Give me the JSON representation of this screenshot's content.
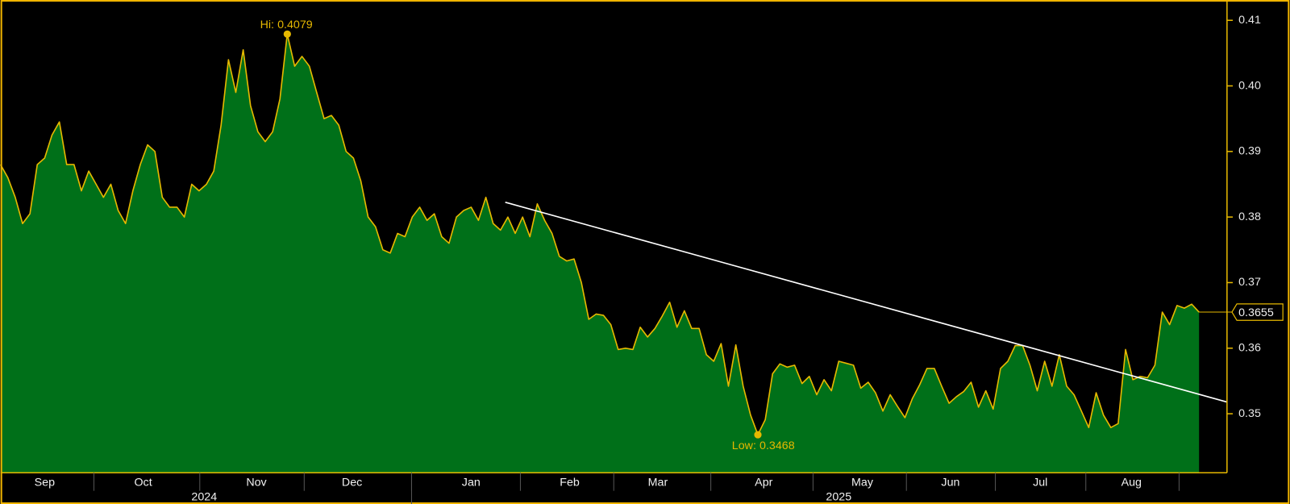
{
  "chart_data": {
    "type": "area",
    "series": [
      {
        "color": "#e6b800",
        "fill": "#007019",
        "values": [
          0.388,
          0.386,
          0.383,
          0.379,
          0.3805,
          0.388,
          0.389,
          0.3925,
          0.3945,
          0.388,
          0.388,
          0.384,
          0.387,
          0.385,
          0.383,
          0.385,
          0.381,
          0.379,
          0.384,
          0.388,
          0.391,
          0.39,
          0.383,
          0.3815,
          0.3815,
          0.38,
          0.385,
          0.384,
          0.385,
          0.387,
          0.394,
          0.404,
          0.399,
          0.4055,
          0.397,
          0.393,
          0.3915,
          0.393,
          0.398,
          0.4079,
          0.403,
          0.4045,
          0.403,
          0.399,
          0.395,
          0.3955,
          0.394,
          0.39,
          0.389,
          0.3855,
          0.38,
          0.3785,
          0.375,
          0.3745,
          0.3775,
          0.377,
          0.38,
          0.3815,
          0.3795,
          0.3805,
          0.377,
          0.376,
          0.38,
          0.381,
          0.3815,
          0.3795,
          0.383,
          0.379,
          0.378,
          0.38,
          0.3775,
          0.38,
          0.377,
          0.382,
          0.3795,
          0.3775,
          0.374,
          0.3733,
          0.3736,
          0.37,
          0.3644,
          0.3652,
          0.365,
          0.3636,
          0.3598,
          0.36,
          0.3598,
          0.3632,
          0.3617,
          0.363,
          0.3649,
          0.367,
          0.3632,
          0.3657,
          0.363,
          0.363,
          0.359,
          0.358,
          0.3607,
          0.3542,
          0.3605,
          0.3542,
          0.3498,
          0.3468,
          0.3491,
          0.3561,
          0.3576,
          0.3571,
          0.3574,
          0.3546,
          0.3557,
          0.3529,
          0.3552,
          0.3535,
          0.358,
          0.3577,
          0.3574,
          0.3539,
          0.3548,
          0.3532,
          0.3504,
          0.3529,
          0.3511,
          0.3494,
          0.3523,
          0.3544,
          0.3569,
          0.3569,
          0.3542,
          0.3516,
          0.3526,
          0.3534,
          0.3548,
          0.351,
          0.3535,
          0.3507,
          0.3569,
          0.358,
          0.3604,
          0.3604,
          0.3574,
          0.3535,
          0.358,
          0.3542,
          0.359,
          0.3542,
          0.3529,
          0.3504,
          0.3479,
          0.3532,
          0.3498,
          0.3479,
          0.3485,
          0.3598,
          0.3552,
          0.3557,
          0.3555,
          0.3574,
          0.3655,
          0.3636,
          0.3665,
          0.3661,
          0.3667,
          0.3655
        ]
      }
    ],
    "xticks": [
      {
        "value": 6,
        "label": "Sep"
      },
      {
        "value": 19.4,
        "label": "Oct"
      },
      {
        "value": 34.8,
        "label": "Nov"
      },
      {
        "value": 47.8,
        "label": "Dec"
      },
      {
        "value": 64,
        "label": "Jan"
      },
      {
        "value": 77.4,
        "label": "Feb"
      },
      {
        "value": 89.4,
        "label": "Mar"
      },
      {
        "value": 103.8,
        "label": "Apr"
      },
      {
        "value": 117.2,
        "label": "May"
      },
      {
        "value": 129.2,
        "label": "Jun"
      },
      {
        "value": 141.4,
        "label": "Jul"
      },
      {
        "value": 153.8,
        "label": "Aug"
      }
    ],
    "years": [
      {
        "value": 27.7,
        "label": "2024"
      },
      {
        "value": 114,
        "label": "2025"
      }
    ],
    "ylim": [
      0.341,
      0.4131
    ],
    "yticks": [
      0.35,
      0.36,
      0.37,
      0.38,
      0.39,
      {
        "value": 0.4,
        "label": "0.40"
      },
      0.41
    ],
    "hi_label": "Hi:",
    "low_label": "Low:"
  }
}
